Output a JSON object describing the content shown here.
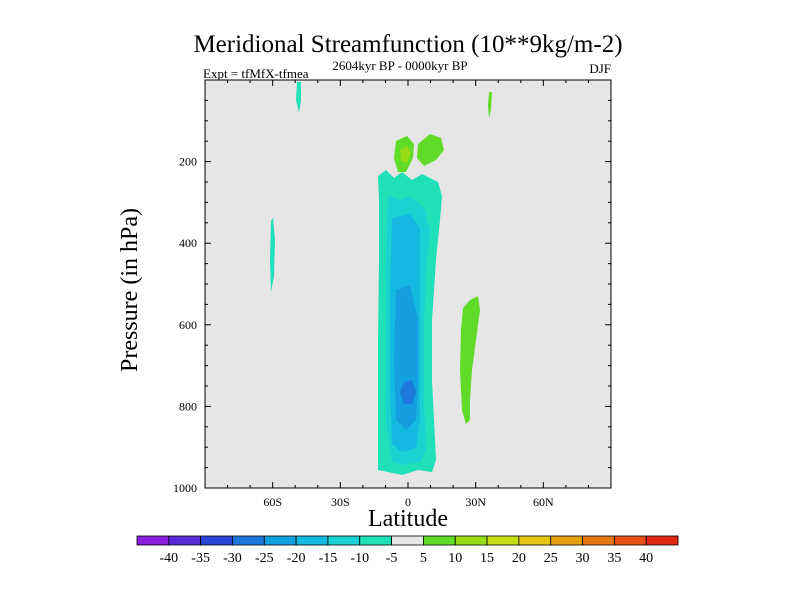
{
  "chart_data": {
    "type": "contour",
    "title": "Meridional Streamfunction (10**9kg/m-2)",
    "subtitle_left": "Expt = tfMfX-tfmea",
    "subtitle_center": "2604kyr BP - 0000kyr BP",
    "subtitle_right": "DJF",
    "xlabel": "Latitude",
    "ylabel": "Pressure (in hPa)",
    "xlim": [
      -90,
      90
    ],
    "ylim": [
      1000,
      0
    ],
    "x_ticks": [
      {
        "value": -60,
        "label": "60S"
      },
      {
        "value": -30,
        "label": "30S"
      },
      {
        "value": 0,
        "label": "0"
      },
      {
        "value": 30,
        "label": "30N"
      },
      {
        "value": 60,
        "label": "60N"
      }
    ],
    "y_ticks": [
      {
        "value": 200,
        "label": "200"
      },
      {
        "value": 400,
        "label": "400"
      },
      {
        "value": 600,
        "label": "600"
      },
      {
        "value": 800,
        "label": "800"
      },
      {
        "value": 1000,
        "label": "1000"
      }
    ],
    "colorbar": {
      "labels": [
        "-40",
        "-35",
        "-30",
        "-25",
        "-20",
        "-15",
        "-10",
        "-5",
        "5",
        "10",
        "15",
        "20",
        "25",
        "30",
        "35",
        "40"
      ],
      "colors": [
        "#8c1ee0",
        "#5a2ad8",
        "#2a44d8",
        "#1e78dc",
        "#14a0e0",
        "#14b8e0",
        "#1ad2d2",
        "#20e0b8",
        "#e6e6e6",
        "#60dc28",
        "#96dc14",
        "#c8dc14",
        "#e6c814",
        "#e6a014",
        "#e67814",
        "#e65014",
        "#e02814"
      ]
    },
    "features": [
      {
        "name": "southern-hemisphere-cell",
        "type": "negative",
        "lat_range": [
          -13,
          13
        ],
        "p_range": [
          205,
          970
        ],
        "min_level": -25
      },
      {
        "name": "upper-positive-pair",
        "type": "positive",
        "lat_range": [
          -4,
          17
        ],
        "p_range": [
          130,
          215
        ],
        "max_level": 10
      },
      {
        "name": "tropical-north-positive",
        "type": "positive",
        "lat_range": [
          24,
          32
        ],
        "p_range": [
          525,
          840
        ],
        "max_level": 5
      },
      {
        "name": "sh-midlat-sliver",
        "type": "negative",
        "lat_range": [
          -61,
          -59
        ],
        "p_range": [
          340,
          520
        ],
        "min_level": -5
      },
      {
        "name": "upper-sh-sliver",
        "type": "negative",
        "lat_range": [
          -48,
          -46
        ],
        "p_range": [
          0,
          70
        ],
        "min_level": -5
      },
      {
        "name": "upper-nh-sliver",
        "type": "positive",
        "lat_range": [
          36,
          38
        ],
        "p_range": [
          20,
          95
        ],
        "max_level": 5
      }
    ]
  }
}
